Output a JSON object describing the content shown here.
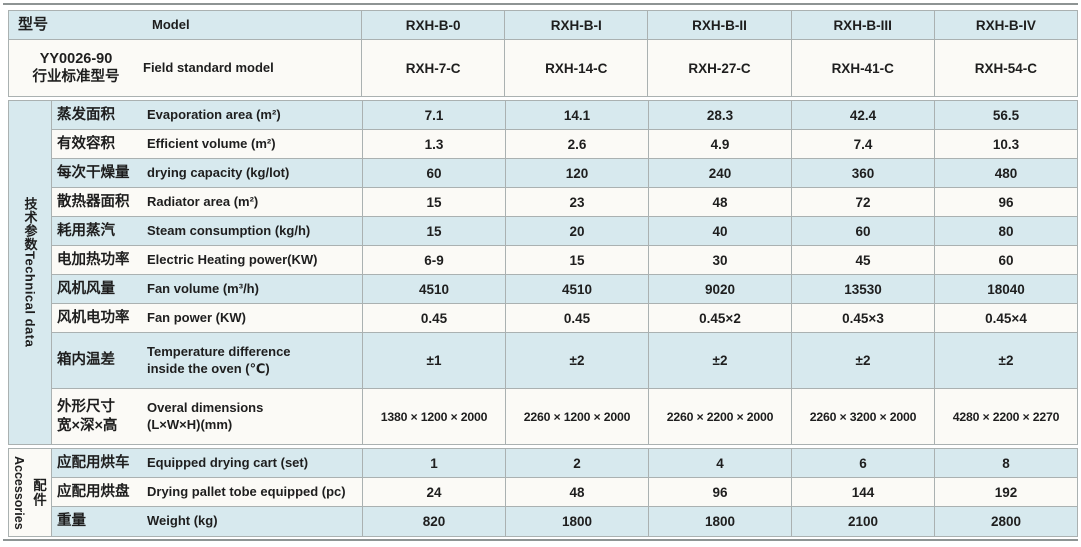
{
  "table": {
    "header": {
      "zh": "型号",
      "en": "Model",
      "models": [
        "RXH-B-0",
        "RXH-B-I",
        "RXH-B-II",
        "RXH-B-III",
        "RXH-B-IV"
      ]
    },
    "standard": {
      "zh": "YY0026-90\n行业标准型号",
      "en": "Field standard model",
      "models": [
        "RXH-7-C",
        "RXH-14-C",
        "RXH-27-C",
        "RXH-41-C",
        "RXH-54-C"
      ]
    },
    "technical_section": {
      "strip_zh": "技术参数",
      "strip_en": "Technical data",
      "rows": [
        {
          "zh": "蒸发面积",
          "en": "Evaporation area (m²)",
          "values": [
            "7.1",
            "14.1",
            "28.3",
            "42.4",
            "56.5"
          ]
        },
        {
          "zh": "有效容积",
          "en": "Efficient volume (m²)",
          "values": [
            "1.3",
            "2.6",
            "4.9",
            "7.4",
            "10.3"
          ]
        },
        {
          "zh": "每次干燥量",
          "en": "drying capacity (kg/lot)",
          "values": [
            "60",
            "120",
            "240",
            "360",
            "480"
          ]
        },
        {
          "zh": "散热器面积",
          "en": "Radiator area (m²)",
          "values": [
            "15",
            "23",
            "48",
            "72",
            "96"
          ]
        },
        {
          "zh": "耗用蒸汽",
          "en": "Steam consumption (kg/h)",
          "values": [
            "15",
            "20",
            "40",
            "60",
            "80"
          ]
        },
        {
          "zh": "电加热功率",
          "en": "Electric Heating power(KW)",
          "values": [
            "6-9",
            "15",
            "30",
            "45",
            "60"
          ]
        },
        {
          "zh": "风机风量",
          "en": "Fan volume (m³/h)",
          "values": [
            "4510",
            "4510",
            "9020",
            "13530",
            "18040"
          ]
        },
        {
          "zh": "风机电功率",
          "en": "Fan power (KW)",
          "values": [
            "0.45",
            "0.45",
            "0.45×2",
            "0.45×3",
            "0.45×4"
          ]
        },
        {
          "zh": "箱内温差",
          "en": "Temperature difference\ninside the oven (℃)",
          "values": [
            "±1",
            "±2",
            "±2",
            "±2",
            "±2"
          ]
        },
        {
          "zh": "外形尺寸\n宽×深×高",
          "en": "Overal dimensions\n(L×W×H)(mm)",
          "values": [
            "1380 × 1200 × 2000",
            "2260 × 1200 × 2000",
            "2260 × 2200 × 2000",
            "2260 × 3200 × 2000",
            "4280 × 2200 × 2270"
          ]
        }
      ]
    },
    "accessories_section": {
      "strip_zh": "配件",
      "strip_en": "Accessories",
      "rows": [
        {
          "zh": "应配用烘车",
          "en": "Equipped drying cart (set)",
          "values": [
            "1",
            "2",
            "4",
            "6",
            "8"
          ]
        },
        {
          "zh": "应配用烘盘",
          "en": "Drying pallet tobe equipped (pc)",
          "values": [
            "24",
            "48",
            "96",
            "144",
            "192"
          ]
        },
        {
          "zh": "重量",
          "en": "Weight (kg)",
          "values": [
            "820",
            "1800",
            "1800",
            "2100",
            "2800"
          ]
        }
      ]
    }
  },
  "colors": {
    "row_blue": "#d7e9ee",
    "row_white": "#fbfaf6",
    "grid_line": "#aab1b1",
    "rule_gray": "#8e9494",
    "text": "#1e1e1e"
  }
}
